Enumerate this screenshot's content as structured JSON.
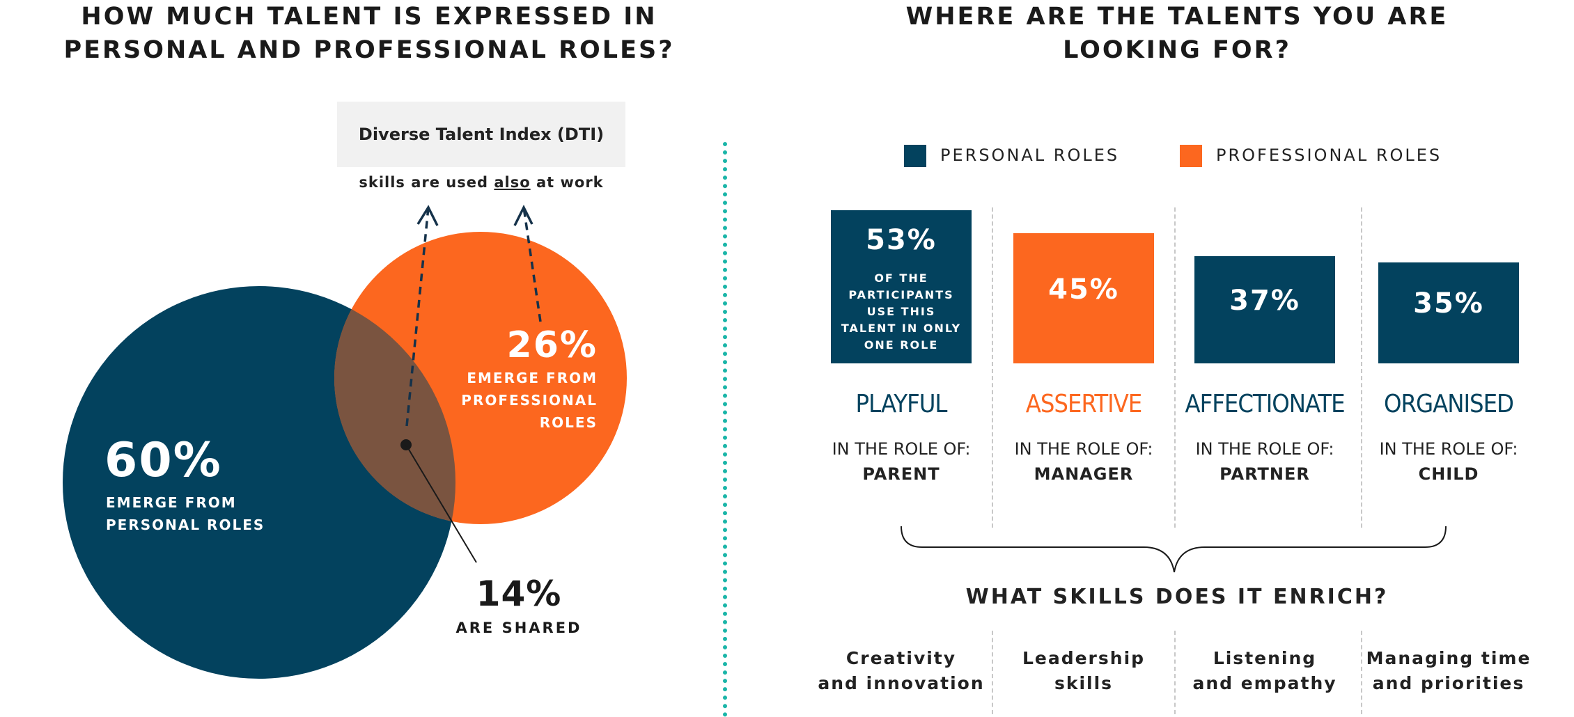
{
  "left": {
    "title_line1": "HOW MUCH TALENT IS EXPRESSED IN",
    "title_line2": "PERSONAL AND PROFESSIONAL ROLES?",
    "dti_title": "Diverse Talent Index (DTI)",
    "dti_text_before": "skills are used ",
    "dti_text_underlined": "also",
    "dti_text_after": " at work",
    "personal_pct": "60%",
    "personal_caption_line1": "EMERGE FROM",
    "personal_caption_line2": "PERSONAL ROLES",
    "professional_pct": "26%",
    "professional_caption_line1": "EMERGE FROM",
    "professional_caption_line2": "PROFESSIONAL",
    "professional_caption_line3": "ROLES",
    "shared_pct": "14%",
    "shared_caption": "ARE SHARED"
  },
  "right": {
    "title_line1": "WHERE ARE THE TALENTS YOU ARE",
    "title_line2": "LOOKING FOR?",
    "legend_personal": "PERSONAL ROLES",
    "legend_professional": "PROFESSIONAL ROLES",
    "in_the_role_of": "IN THE ROLE OF:",
    "bar_note": [
      "OF THE",
      "PARTICIPANTS",
      "USE THIS",
      "TALENT IN ONLY",
      "ONE ROLE"
    ],
    "enrich_title": "WHAT SKILLS DOES IT ENRICH?"
  },
  "colors": {
    "personal": "#03425e",
    "professional": "#fc671f",
    "overlap": "#7a5440",
    "divider": "#1ab5a8"
  },
  "chart_data": [
    {
      "type": "venn",
      "sets": [
        {
          "name": "PERSONAL ROLES",
          "value": 60
        },
        {
          "name": "PROFESSIONAL ROLES",
          "value": 26
        },
        {
          "name": "ARE SHARED",
          "value": 14
        }
      ]
    },
    {
      "type": "bar",
      "categories": [
        "PLAYFUL",
        "ASSERTIVE",
        "AFFECTIONATE",
        "ORGANISED"
      ],
      "values": [
        53,
        45,
        37,
        35
      ],
      "labels": [
        "53%",
        "45%",
        "37%",
        "35%"
      ],
      "series_type": [
        "personal",
        "professional",
        "personal",
        "personal"
      ],
      "roles": [
        "PARENT",
        "MANAGER",
        "PARTNER",
        "CHILD"
      ],
      "skills": [
        [
          "Creativity",
          "and innovation"
        ],
        [
          "Leadership",
          "skills"
        ],
        [
          "Listening",
          "and empathy"
        ],
        [
          "Managing time",
          "and priorities"
        ]
      ],
      "legend": [
        "PERSONAL ROLES",
        "PROFESSIONAL ROLES"
      ]
    }
  ]
}
